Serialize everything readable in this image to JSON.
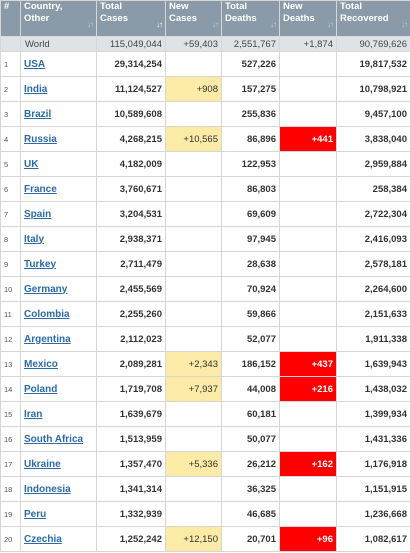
{
  "headers": {
    "rank": "#",
    "country": "Country, Other",
    "total_cases": "Total Cases",
    "new_cases": "New Cases",
    "total_deaths": "Total Deaths",
    "new_deaths": "New Deaths",
    "total_recovered": "Total Recovered",
    "sort_glyph": "↓↑"
  },
  "world": {
    "country": "World",
    "total_cases": "115,049,044",
    "new_cases": "+59,403",
    "total_deaths": "2,551,767",
    "new_deaths": "+1,874",
    "total_recovered": "90,769,626"
  },
  "highlight_colors": {
    "new_cases": "#fbeba7",
    "new_deaths": "#ff0000",
    "header_bg": "#8a9aa8",
    "link": "#2c6ba8"
  },
  "rows": [
    {
      "rank": "1",
      "country": "USA",
      "total_cases": "29,314,254",
      "new_cases": "",
      "total_deaths": "527,226",
      "new_deaths": "",
      "total_recovered": "19,817,532"
    },
    {
      "rank": "2",
      "country": "India",
      "total_cases": "11,124,527",
      "new_cases": "+908",
      "total_deaths": "157,275",
      "new_deaths": "",
      "total_recovered": "10,798,921"
    },
    {
      "rank": "3",
      "country": "Brazil",
      "total_cases": "10,589,608",
      "new_cases": "",
      "total_deaths": "255,836",
      "new_deaths": "",
      "total_recovered": "9,457,100"
    },
    {
      "rank": "4",
      "country": "Russia",
      "total_cases": "4,268,215",
      "new_cases": "+10,565",
      "total_deaths": "86,896",
      "new_deaths": "+441",
      "total_recovered": "3,838,040"
    },
    {
      "rank": "5",
      "country": "UK",
      "total_cases": "4,182,009",
      "new_cases": "",
      "total_deaths": "122,953",
      "new_deaths": "",
      "total_recovered": "2,959,884"
    },
    {
      "rank": "6",
      "country": "France",
      "total_cases": "3,760,671",
      "new_cases": "",
      "total_deaths": "86,803",
      "new_deaths": "",
      "total_recovered": "258,384"
    },
    {
      "rank": "7",
      "country": "Spain",
      "total_cases": "3,204,531",
      "new_cases": "",
      "total_deaths": "69,609",
      "new_deaths": "",
      "total_recovered": "2,722,304"
    },
    {
      "rank": "8",
      "country": "Italy",
      "total_cases": "2,938,371",
      "new_cases": "",
      "total_deaths": "97,945",
      "new_deaths": "",
      "total_recovered": "2,416,093"
    },
    {
      "rank": "9",
      "country": "Turkey",
      "total_cases": "2,711,479",
      "new_cases": "",
      "total_deaths": "28,638",
      "new_deaths": "",
      "total_recovered": "2,578,181"
    },
    {
      "rank": "10",
      "country": "Germany",
      "total_cases": "2,455,569",
      "new_cases": "",
      "total_deaths": "70,924",
      "new_deaths": "",
      "total_recovered": "2,264,600"
    },
    {
      "rank": "11",
      "country": "Colombia",
      "total_cases": "2,255,260",
      "new_cases": "",
      "total_deaths": "59,866",
      "new_deaths": "",
      "total_recovered": "2,151,633"
    },
    {
      "rank": "12",
      "country": "Argentina",
      "total_cases": "2,112,023",
      "new_cases": "",
      "total_deaths": "52,077",
      "new_deaths": "",
      "total_recovered": "1,911,338"
    },
    {
      "rank": "13",
      "country": "Mexico",
      "total_cases": "2,089,281",
      "new_cases": "+2,343",
      "total_deaths": "186,152",
      "new_deaths": "+437",
      "total_recovered": "1,639,943"
    },
    {
      "rank": "14",
      "country": "Poland",
      "total_cases": "1,719,708",
      "new_cases": "+7,937",
      "total_deaths": "44,008",
      "new_deaths": "+216",
      "total_recovered": "1,438,032"
    },
    {
      "rank": "15",
      "country": "Iran",
      "total_cases": "1,639,679",
      "new_cases": "",
      "total_deaths": "60,181",
      "new_deaths": "",
      "total_recovered": "1,399,934"
    },
    {
      "rank": "16",
      "country": "South Africa",
      "total_cases": "1,513,959",
      "new_cases": "",
      "total_deaths": "50,077",
      "new_deaths": "",
      "total_recovered": "1,431,336"
    },
    {
      "rank": "17",
      "country": "Ukraine",
      "total_cases": "1,357,470",
      "new_cases": "+5,336",
      "total_deaths": "26,212",
      "new_deaths": "+162",
      "total_recovered": "1,176,918"
    },
    {
      "rank": "18",
      "country": "Indonesia",
      "total_cases": "1,341,314",
      "new_cases": "",
      "total_deaths": "36,325",
      "new_deaths": "",
      "total_recovered": "1,151,915"
    },
    {
      "rank": "19",
      "country": "Peru",
      "total_cases": "1,332,939",
      "new_cases": "",
      "total_deaths": "46,685",
      "new_deaths": "",
      "total_recovered": "1,236,668"
    },
    {
      "rank": "20",
      "country": "Czechia",
      "total_cases": "1,252,242",
      "new_cases": "+12,150",
      "total_deaths": "20,701",
      "new_deaths": "+96",
      "total_recovered": "1,082,617"
    }
  ]
}
